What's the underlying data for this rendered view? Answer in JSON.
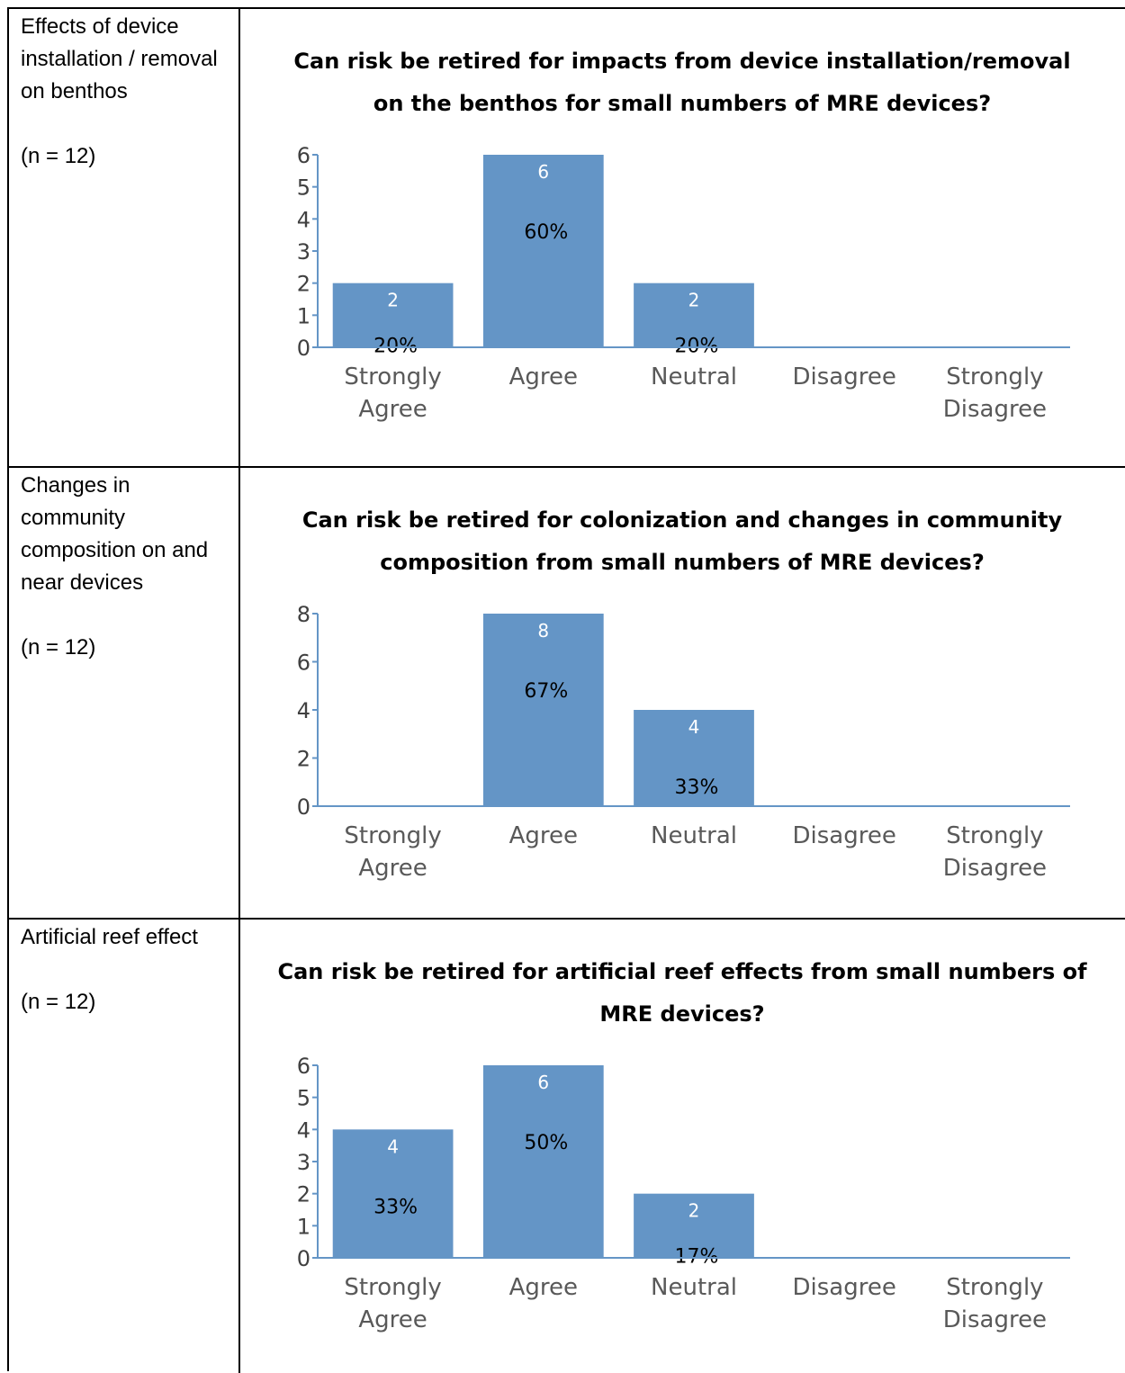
{
  "colors": {
    "bar": "#6495c6",
    "axis": "#6495c6"
  },
  "rows": [
    {
      "label": "Effects of device installation / removal on benthos",
      "n": "(n = 12)",
      "chart_data": {
        "type": "bar",
        "title_lines": [
          "Can risk be retired for impacts from device installation/removal",
          "on the benthos for small numbers of MRE devices?"
        ],
        "categories": [
          "Strongly Agree",
          "Agree",
          "Neutral",
          "Disagree",
          "Strongly Disagree"
        ],
        "values": [
          2,
          6,
          2,
          0,
          0
        ],
        "value_labels": [
          "2",
          "6",
          "2",
          "",
          ""
        ],
        "percent_labels": [
          "20%",
          "60%",
          "20%",
          "",
          ""
        ],
        "ylim": [
          0,
          6
        ],
        "yticks": [
          0,
          1,
          2,
          3,
          4,
          5,
          6
        ],
        "xlabel": "",
        "ylabel": "",
        "grid": false,
        "legend": "none"
      }
    },
    {
      "label": "Changes in community composition on and near devices",
      "n": "(n = 12)",
      "chart_data": {
        "type": "bar",
        "title_lines": [
          "Can risk be retired for colonization and changes in community",
          "composition from small numbers of MRE devices?"
        ],
        "categories": [
          "Strongly Agree",
          "Agree",
          "Neutral",
          "Disagree",
          "Strongly Disagree"
        ],
        "values": [
          0,
          8,
          4,
          0,
          0
        ],
        "value_labels": [
          "",
          "8",
          "4",
          "",
          ""
        ],
        "percent_labels": [
          "",
          "67%",
          "33%",
          "",
          ""
        ],
        "ylim": [
          0,
          8
        ],
        "yticks": [
          0,
          2,
          4,
          6,
          8
        ],
        "xlabel": "",
        "ylabel": "",
        "grid": false,
        "legend": "none"
      }
    },
    {
      "label": "Artificial reef effect",
      "n": "(n = 12)",
      "chart_data": {
        "type": "bar",
        "title_lines": [
          "Can risk be retired for artificial reef effects from small numbers of",
          "MRE devices?"
        ],
        "categories": [
          "Strongly Agree",
          "Agree",
          "Neutral",
          "Disagree",
          "Strongly Disagree"
        ],
        "values": [
          4,
          6,
          2,
          0,
          0
        ],
        "value_labels": [
          "4",
          "6",
          "2",
          "",
          ""
        ],
        "percent_labels": [
          "33%",
          "50%",
          "17%",
          "",
          ""
        ],
        "ylim": [
          0,
          6
        ],
        "yticks": [
          0,
          1,
          2,
          3,
          4,
          5,
          6
        ],
        "xlabel": "",
        "ylabel": "",
        "grid": false,
        "legend": "none"
      }
    }
  ]
}
